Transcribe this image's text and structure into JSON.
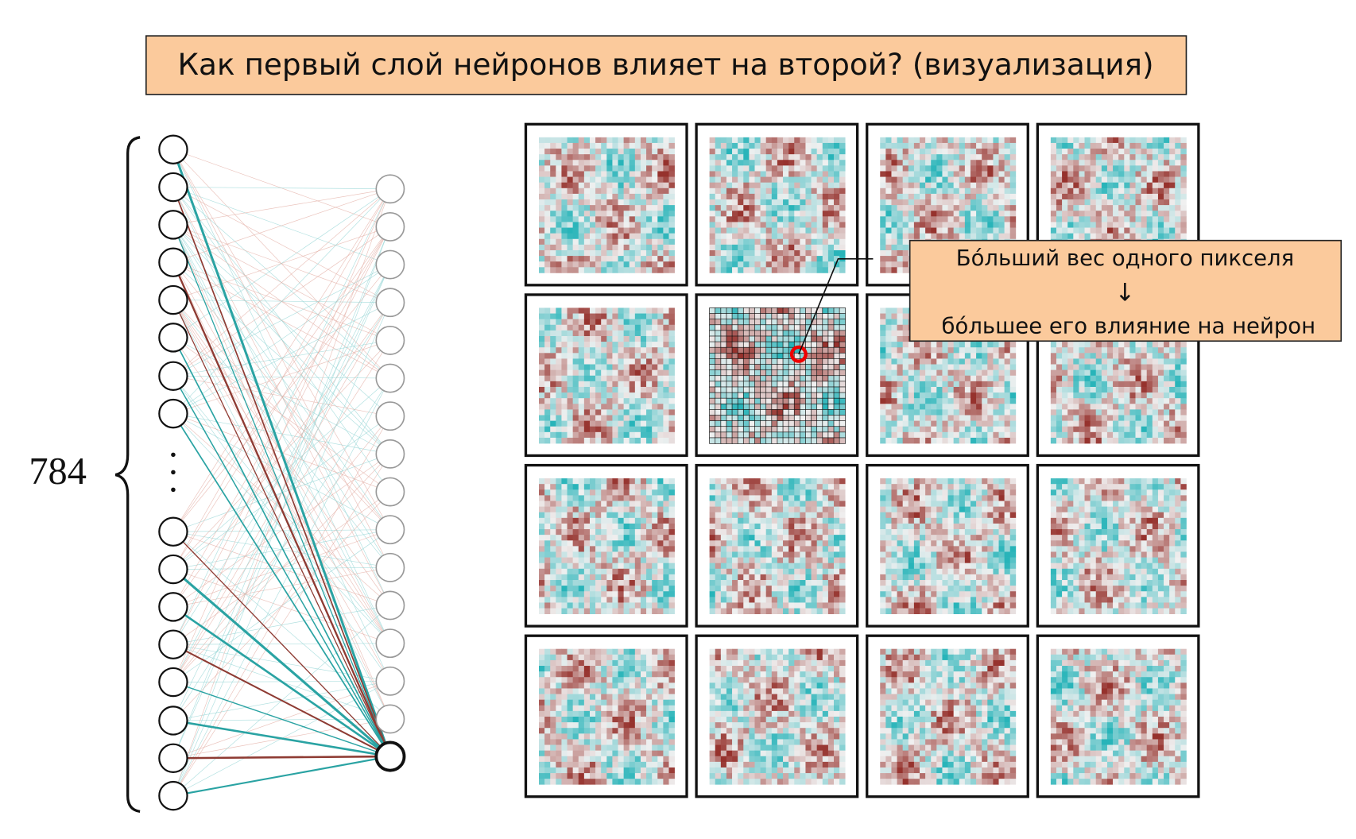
{
  "title": "Как первый слой нейронов влияет на второй? (визуализация)",
  "network": {
    "input_count_label": "784"
  },
  "callout": {
    "lines": [
      "Бо́льший вес одного пикселя",
      "↓",
      "бо́льшее его влияние на нейрон"
    ]
  }
}
